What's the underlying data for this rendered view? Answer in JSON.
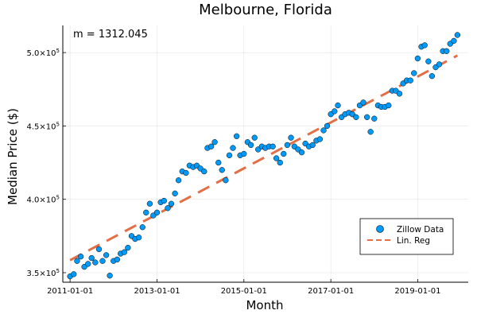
{
  "chart_data": {
    "type": "scatter",
    "title": "Melbourne, Florida",
    "xlabel": "Month",
    "ylabel": "Median Price ($)",
    "annotation": "m = 1312.045",
    "x_ticks": [
      "2011-01-01",
      "2013-01-01",
      "2015-01-01",
      "2017-01-01",
      "2019-01-01"
    ],
    "y_ticks": [
      {
        "value": 350000,
        "mantissa": "3.5×10",
        "exp": "5"
      },
      {
        "value": 400000,
        "mantissa": "4.0×10",
        "exp": "5"
      },
      {
        "value": 450000,
        "mantissa": "4.5×10",
        "exp": "5"
      },
      {
        "value": 500000,
        "mantissa": "5.0×10",
        "exp": "5"
      }
    ],
    "xlim": [
      "2010-11-01",
      "2020-03-01"
    ],
    "ylim": [
      343500,
      518500
    ],
    "grid": true,
    "legend_position": "bottom-right",
    "colors": {
      "scatter": "#009AF9",
      "regression": "#E26F46"
    },
    "series": [
      {
        "name": "Zillow Data",
        "style": "markers",
        "x": [
          "2011-01-01",
          "2011-02-01",
          "2011-03-01",
          "2011-04-01",
          "2011-05-01",
          "2011-06-01",
          "2011-07-01",
          "2011-08-01",
          "2011-09-01",
          "2011-10-01",
          "2011-11-01",
          "2011-12-01",
          "2012-01-01",
          "2012-02-01",
          "2012-03-01",
          "2012-04-01",
          "2012-05-01",
          "2012-06-01",
          "2012-07-01",
          "2012-08-01",
          "2012-09-01",
          "2012-10-01",
          "2012-11-01",
          "2012-12-01",
          "2013-01-01",
          "2013-02-01",
          "2013-03-01",
          "2013-04-01",
          "2013-05-01",
          "2013-06-01",
          "2013-07-01",
          "2013-08-01",
          "2013-09-01",
          "2013-10-01",
          "2013-11-01",
          "2013-12-01",
          "2014-01-01",
          "2014-02-01",
          "2014-03-01",
          "2014-04-01",
          "2014-05-01",
          "2014-06-01",
          "2014-07-01",
          "2014-08-01",
          "2014-09-01",
          "2014-10-01",
          "2014-11-01",
          "2014-12-01",
          "2015-01-01",
          "2015-02-01",
          "2015-03-01",
          "2015-04-01",
          "2015-05-01",
          "2015-06-01",
          "2015-07-01",
          "2015-08-01",
          "2015-09-01",
          "2015-10-01",
          "2015-11-01",
          "2015-12-01",
          "2016-01-01",
          "2016-02-01",
          "2016-03-01",
          "2016-04-01",
          "2016-05-01",
          "2016-06-01",
          "2016-07-01",
          "2016-08-01",
          "2016-09-01",
          "2016-10-01",
          "2016-11-01",
          "2016-12-01",
          "2017-01-01",
          "2017-02-01",
          "2017-03-01",
          "2017-04-01",
          "2017-05-01",
          "2017-06-01",
          "2017-07-01",
          "2017-08-01",
          "2017-09-01",
          "2017-10-01",
          "2017-11-01",
          "2017-12-01",
          "2018-01-01",
          "2018-02-01",
          "2018-03-01",
          "2018-04-01",
          "2018-05-01",
          "2018-06-01",
          "2018-07-01",
          "2018-08-01",
          "2018-09-01",
          "2018-10-01",
          "2018-11-01",
          "2018-12-01",
          "2019-01-01",
          "2019-02-01",
          "2019-03-01",
          "2019-04-01",
          "2019-05-01",
          "2019-06-01",
          "2019-07-01",
          "2019-08-01",
          "2019-09-01",
          "2019-10-01",
          "2019-11-01",
          "2019-12-01"
        ],
        "y": [
          347500,
          349000,
          358000,
          361000,
          354000,
          356000,
          360000,
          357000,
          366000,
          358000,
          362000,
          348000,
          358000,
          359000,
          363000,
          364000,
          367000,
          375000,
          373000,
          374000,
          381000,
          391000,
          397000,
          389000,
          391000,
          398000,
          399000,
          394000,
          397000,
          404000,
          413000,
          419000,
          418000,
          423000,
          422000,
          423000,
          421000,
          419000,
          435000,
          436000,
          439000,
          425000,
          420000,
          413000,
          430000,
          435000,
          443000,
          430000,
          431000,
          439000,
          437000,
          442000,
          434000,
          436000,
          435000,
          436000,
          436000,
          428000,
          425000,
          431000,
          437000,
          442000,
          436000,
          434000,
          432000,
          438000,
          436000,
          437000,
          440000,
          441000,
          447000,
          450000,
          458000,
          460000,
          464000,
          456000,
          458000,
          459000,
          458000,
          456000,
          464000,
          466000,
          456000,
          446000,
          455000,
          464000,
          463000,
          463000,
          464000,
          474000,
          474000,
          472000,
          479000,
          481000,
          481000,
          486000,
          496000,
          504000,
          505000,
          494000,
          484000,
          490000,
          492000,
          501000,
          501000,
          506000,
          508000,
          512000
        ]
      },
      {
        "name": "Lin. Reg",
        "style": "dashed-line",
        "x": [
          "2011-01-01",
          "2019-12-01"
        ],
        "y": [
          358500,
          498000
        ]
      }
    ]
  }
}
